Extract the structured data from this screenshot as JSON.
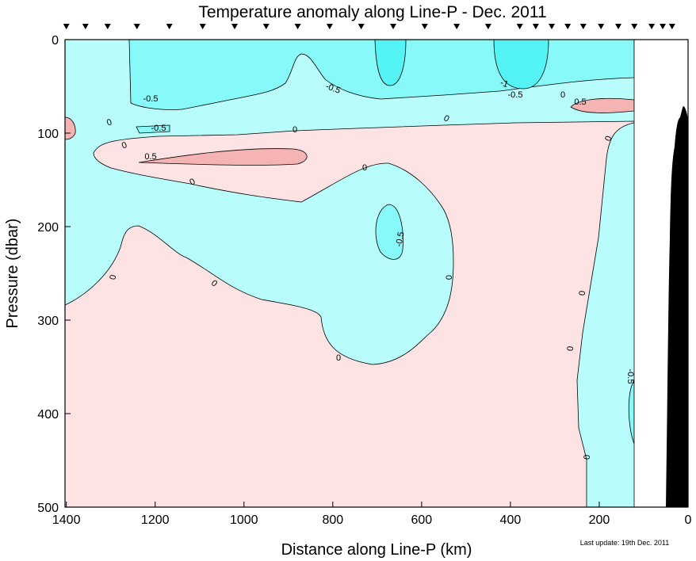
{
  "chart_data": {
    "type": "contour",
    "title": "Temperature anomaly along Line-P - Dec. 2011",
    "x_label": "Distance along Line-P (km)",
    "y_label": "Pressure (dbar)",
    "note": "Last update: 19th Dec. 2011",
    "xlim": [
      1403,
      0
    ],
    "xticks": [
      1400,
      1200,
      1000,
      800,
      600,
      400,
      200,
      0
    ],
    "ylim": [
      0,
      500
    ],
    "yticks": [
      0,
      100,
      200,
      300,
      400,
      500
    ],
    "stations": [
      1400,
      1357,
      1307,
      1241,
      1168,
      1093,
      1021,
      950,
      879,
      807,
      736,
      664,
      593,
      521,
      450,
      379,
      343,
      307,
      271,
      236,
      196,
      157,
      121,
      82,
      57,
      36
    ],
    "contour_levels": [
      -1,
      -0.5,
      0,
      0.5
    ]
  }
}
